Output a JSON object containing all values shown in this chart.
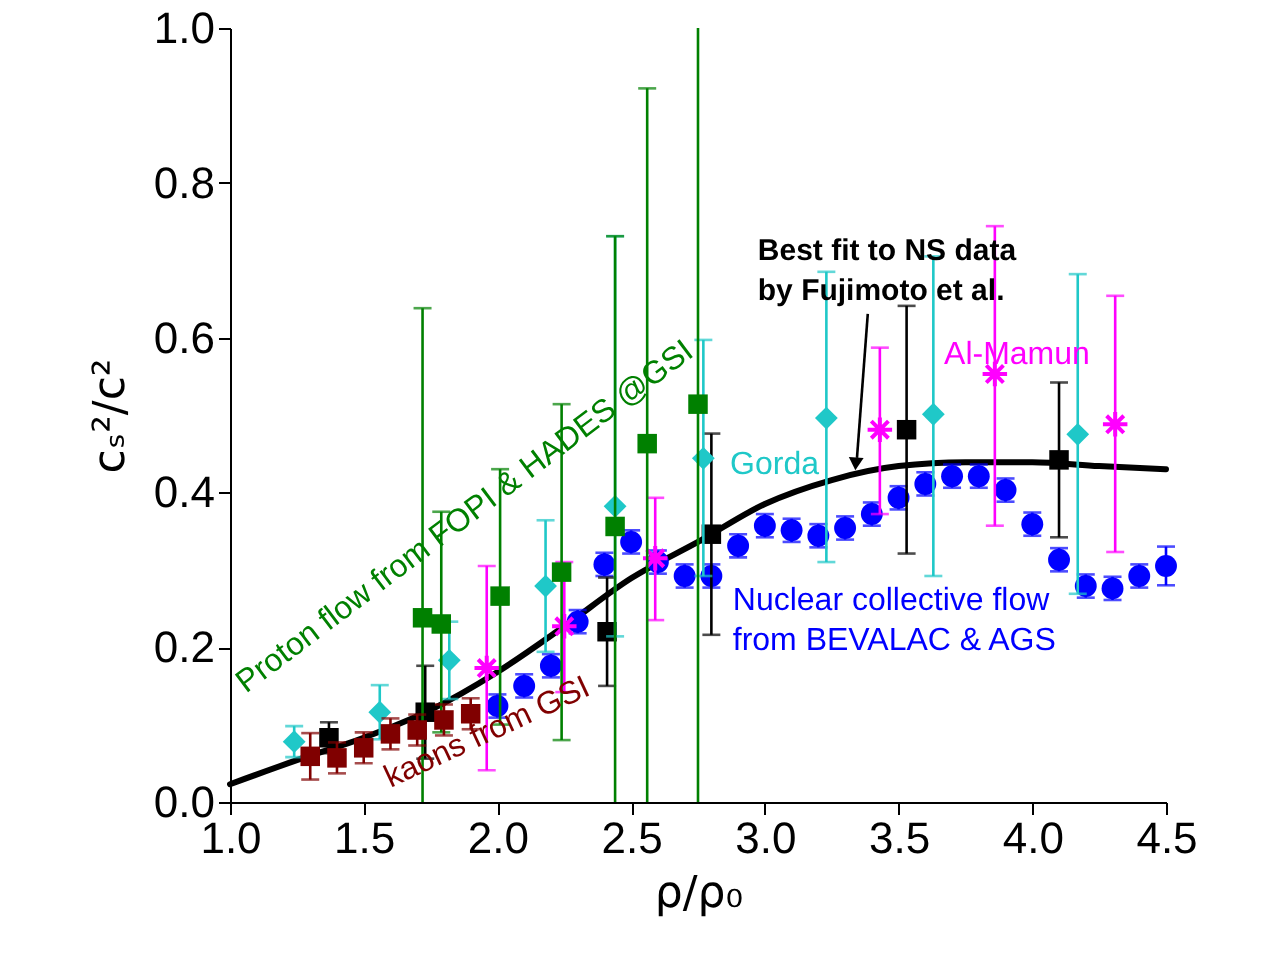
{
  "chart_data": {
    "type": "scatter",
    "xlabel": "ρ/ρ₀",
    "ylabel": "cₛ²/c²",
    "xlim": [
      1.0,
      4.5
    ],
    "ylim": [
      0.0,
      1.0
    ],
    "xticks": [
      {
        "value": 1.0,
        "label": "1.0"
      },
      {
        "value": 1.5,
        "label": "1.5"
      },
      {
        "value": 2.0,
        "label": "2.0"
      },
      {
        "value": 2.5,
        "label": "2.5"
      },
      {
        "value": 3.0,
        "label": "3.0"
      },
      {
        "value": 3.5,
        "label": "3.5"
      },
      {
        "value": 4.0,
        "label": "4.0"
      },
      {
        "value": 4.5,
        "label": "4.5"
      }
    ],
    "yticks": [
      {
        "value": 0.0,
        "label": "0.0"
      },
      {
        "value": 0.2,
        "label": "0.2"
      },
      {
        "value": 0.4,
        "label": "0.4"
      },
      {
        "value": 0.6,
        "label": "0.6"
      },
      {
        "value": 0.8,
        "label": "0.8"
      },
      {
        "value": 1.0,
        "label": "1.0"
      }
    ],
    "series": [
      {
        "type": "line",
        "color": "#000000",
        "x": [
          1.0,
          1.25,
          1.5,
          1.75,
          2.0,
          2.25,
          2.5,
          2.75,
          3.0,
          3.25,
          3.5,
          3.75,
          4.0,
          4.25,
          4.5
        ],
        "values": [
          0.023,
          0.054,
          0.083,
          0.119,
          0.168,
          0.227,
          0.289,
          0.336,
          0.385,
          0.416,
          0.434,
          0.439,
          0.439,
          0.434,
          0.43
        ]
      },
      {
        "name": "Nuclear collective flow from BEVALAC & AGS",
        "color": "#0000ff",
        "marker": "circle",
        "x": [
          2.0,
          2.1,
          2.2,
          2.3,
          2.4,
          2.5,
          2.6,
          2.7,
          2.8,
          2.9,
          3.0,
          3.1,
          3.2,
          3.3,
          3.4,
          3.5,
          3.6,
          3.7,
          3.8,
          3.9,
          4.0,
          4.1,
          4.2,
          4.3,
          4.4,
          4.5
        ],
        "values": [
          0.124,
          0.15,
          0.176,
          0.233,
          0.307,
          0.336,
          0.31,
          0.292,
          0.292,
          0.331,
          0.357,
          0.351,
          0.344,
          0.354,
          0.372,
          0.393,
          0.411,
          0.421,
          0.421,
          0.403,
          0.359,
          0.313,
          0.279,
          0.276,
          0.292,
          0.305
        ],
        "errors": [
          0.015,
          0.015,
          0.015,
          0.015,
          0.015,
          0.015,
          0.015,
          0.015,
          0.015,
          0.015,
          0.015,
          0.015,
          0.015,
          0.015,
          0.015,
          0.015,
          0.015,
          0.015,
          0.015,
          0.015,
          0.015,
          0.015,
          0.015,
          0.015,
          0.015,
          0.025
        ]
      },
      {
        "color": "#000000",
        "marker": "square",
        "x": [
          1.37,
          1.73,
          2.41,
          2.8,
          3.53,
          4.1
        ],
        "values": [
          0.083,
          0.116,
          0.22,
          0.346,
          0.481,
          0.442
        ],
        "errors": [
          0.02,
          0.06,
          0.07,
          0.13,
          0.16,
          0.1
        ]
      },
      {
        "name": "Gorda",
        "color": "#1fc8c8",
        "marker": "diamond",
        "x": [
          1.24,
          1.56,
          1.82,
          2.18,
          2.44,
          2.77,
          3.23,
          3.63,
          4.17
        ],
        "values": [
          0.078,
          0.116,
          0.183,
          0.279,
          0.382,
          0.444,
          0.496,
          0.501,
          0.475
        ],
        "errors": [
          0.02,
          0.035,
          0.05,
          0.085,
          [
            0.214,
            0.731
          ],
          [
            0.292,
            0.597
          ],
          [
            0.31,
            0.685
          ],
          [
            0.292,
            0.705
          ],
          [
            0.269,
            0.682
          ]
        ]
      },
      {
        "name": "Al-Mamun",
        "color": "#ff00ff",
        "marker": "cross",
        "x": [
          1.96,
          2.25,
          2.59,
          3.43,
          3.86,
          4.31
        ],
        "values": [
          0.173,
          0.227,
          0.315,
          0.481,
          0.553,
          0.488
        ],
        "errors": [
          [
            0.041,
            0.305
          ],
          [
            0.142,
            0.31
          ],
          [
            0.235,
            0.393
          ],
          [
            0.372,
            0.587
          ],
          [
            0.357,
            0.744
          ],
          [
            0.323,
            0.654
          ]
        ]
      },
      {
        "name": "Proton flow from FOPI & HADES @GSI",
        "color": "#008000",
        "marker": "square",
        "x": [
          1.72,
          1.79,
          2.01,
          2.24,
          2.44,
          2.56,
          2.75
        ],
        "values": [
          0.238,
          0.23,
          0.266,
          0.297,
          0.356,
          0.463,
          0.514
        ],
        "errors": [
          [
            0.0,
            0.638
          ],
          [
            0.09,
            0.375
          ],
          [
            0.1,
            0.43
          ],
          [
            0.08,
            0.514
          ],
          [
            0.0,
            0.731
          ],
          [
            0.0,
            0.922
          ],
          [
            0.0,
            1.0
          ]
        ]
      },
      {
        "name": "kaons from GSI",
        "color": "#800000",
        "marker": "square",
        "x": [
          1.3,
          1.4,
          1.5,
          1.6,
          1.7,
          1.8,
          1.9
        ],
        "values": [
          0.059,
          0.057,
          0.07,
          0.088,
          0.093,
          0.106,
          0.114
        ],
        "errors": [
          0.03,
          0.02,
          0.02,
          0.02,
          0.02,
          0.02,
          0.02
        ]
      }
    ],
    "annotations": [
      {
        "text": "Best fit to NS data by Fujimoto et al.",
        "x": 3.34,
        "y": 0.424
      }
    ]
  }
}
